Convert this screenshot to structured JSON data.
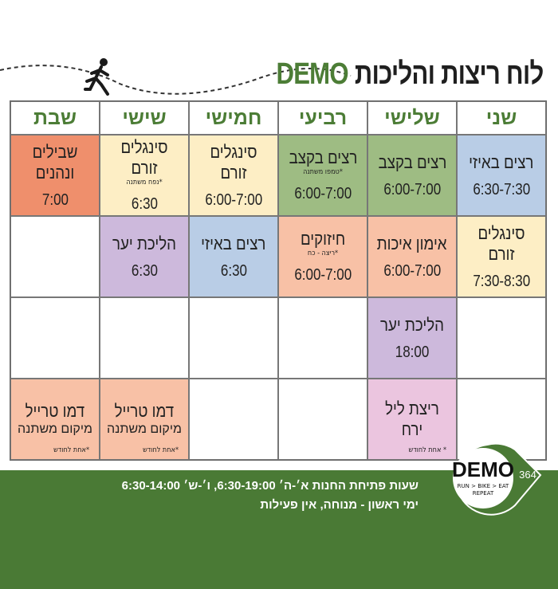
{
  "title": {
    "text": "לוח ריצות והליכות",
    "brand": "DEMO"
  },
  "colors": {
    "blue": "#b9cde6",
    "green": "#9ebc83",
    "cream": "#fdeec5",
    "salmon": "#f8c1a6",
    "orange": "#ef8f6c",
    "purple": "#cdb9dc",
    "pink": "#ebc5df",
    "brand_green": "#4a7a35"
  },
  "days": [
    "שני",
    "שלישי",
    "רביעי",
    "חמישי",
    "שישי",
    "שבת"
  ],
  "rows": [
    [
      {
        "name": "רצים באיזי",
        "time": "6:30-7:30",
        "color": "blue"
      },
      {
        "name": "רצים בקצב",
        "time": "6:00-7:00",
        "color": "green"
      },
      {
        "name": "רצים בקצב",
        "sub": "*טמפו משתנה",
        "time": "6:00-7:00",
        "color": "green"
      },
      {
        "name": "סינגלים זורם",
        "time": "6:00-7:00",
        "color": "cream"
      },
      {
        "name": "סינגלים זורם",
        "sub": "*נפח משתנה",
        "time": "6:30",
        "color": "cream"
      },
      {
        "name": "שבילים ונהנים",
        "time": "7:00",
        "color": "orange"
      }
    ],
    [
      {
        "name": "סינגלים זורם",
        "time": "7:30-8:30",
        "color": "cream"
      },
      {
        "name": "אימון איכות",
        "time": "6:00-7:00",
        "color": "salmon"
      },
      {
        "name": "חיזוקים",
        "sub": "*ריצה - כח",
        "time": "6:00-7:00",
        "color": "salmon"
      },
      {
        "name": "רצים באיזי",
        "time": "6:30",
        "color": "blue"
      },
      {
        "name": "הליכת יער",
        "time": "6:30",
        "color": "purple"
      },
      {}
    ],
    [
      {},
      {
        "name": "הליכת יער",
        "time": "18:00",
        "color": "purple"
      },
      {},
      {},
      {},
      {}
    ],
    [
      {},
      {
        "name": "ריצת ליל ירח",
        "note": "* אחת לחודש",
        "color": "pink"
      },
      {},
      {},
      {
        "name": "דמו טרייל",
        "loc": "מיקום משתנה",
        "note": "*אחת לחודש",
        "color": "salmon"
      },
      {
        "name": "דמו טרייל",
        "loc": "מיקום משתנה",
        "note": "*אחת לחודש",
        "color": "salmon"
      }
    ]
  ],
  "footer": {
    "hours": "שעות פתיחת החנות א׳-ה׳ 6:30-19:00, ו׳-ש׳ 6:30-14:00",
    "closed": "ימי ראשון - מנוחה, אין פעילות"
  },
  "logo": {
    "brand": "DEMO",
    "number": "364",
    "tagline": "RUN > BIKE > EAT",
    "tagline2": "REPEAT"
  }
}
